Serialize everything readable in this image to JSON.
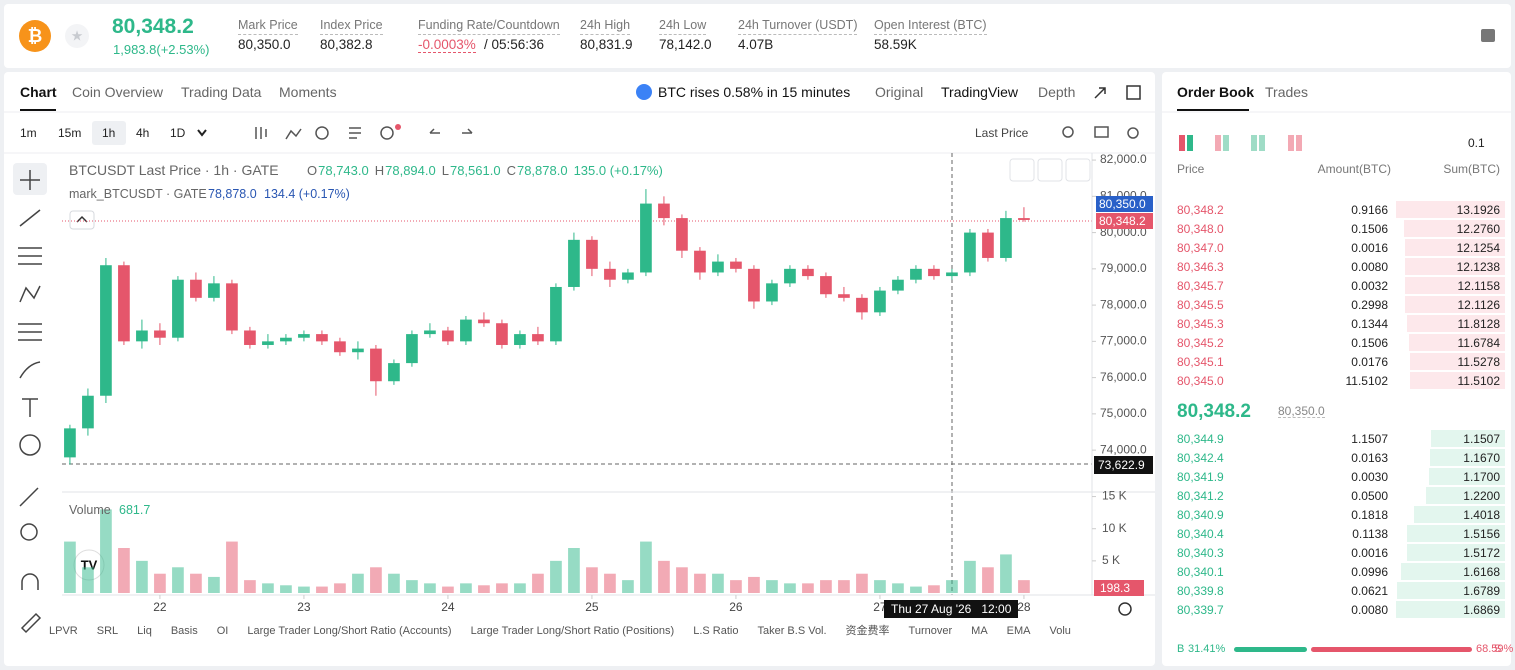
{
  "header": {
    "price": "80,348.2",
    "change": "1,983.8(+2.53%)",
    "stats": [
      {
        "label": "Mark Price",
        "value": "80,350.0"
      },
      {
        "label": "Index Price",
        "value": "80,382.8"
      },
      {
        "label": "Funding Rate/Countdown",
        "value": "-0.0003%",
        "extra": "/ 05:56:36"
      },
      {
        "label": "24h High",
        "value": "80,831.9"
      },
      {
        "label": "24h Low",
        "value": "78,142.0"
      },
      {
        "label": "24h Turnover (USDT)",
        "value": "4.07B"
      },
      {
        "label": "Open Interest (BTC)",
        "value": "58.59K"
      }
    ]
  },
  "chart_panel": {
    "tabs": [
      "Chart",
      "Coin Overview",
      "Trading Data",
      "Moments"
    ],
    "alert": "BTC rises 0.58% in 15 minutes",
    "views": [
      "Original",
      "TradingView",
      "Depth"
    ],
    "intervals": [
      "1m",
      "15m",
      "1h",
      "4h",
      "1D"
    ],
    "price_source": "Last Price",
    "indicators": [
      "LPVR",
      "SRL",
      "Liq",
      "Basis",
      "OI",
      "Large Trader Long/Short Ratio (Accounts)",
      "Large Trader Long/Short Ratio (Positions)",
      "L.S Ratio",
      "Taker B.S Vol.",
      "资金费率",
      "Turnover",
      "MA",
      "EMA",
      "Volu"
    ]
  },
  "chart_data": {
    "type": "candlestick",
    "title": "BTCUSDT Last Price · 1h · GATE",
    "ohlc": [
      [
        "O",
        "78,743.0"
      ],
      [
        "H",
        "78,894.0"
      ],
      [
        "L",
        "78,561.0"
      ],
      [
        "C",
        "78,878.0"
      ]
    ],
    "change": "135.0 (+0.17%)",
    "mark_title": "mark_BTCUSDT · GATE",
    "mark_price": "78,878.0",
    "mark_change": "134.4 (+0.17%)",
    "up_color": "#2eb88a",
    "down_color": "#e5566b",
    "candles": [
      [
        73800,
        74700,
        73600,
        74600
      ],
      [
        74600,
        75700,
        74400,
        75500
      ],
      [
        75500,
        79300,
        75300,
        79100
      ],
      [
        79100,
        79200,
        76900,
        77000
      ],
      [
        77000,
        77600,
        76800,
        77300
      ],
      [
        77300,
        77500,
        76900,
        77100
      ],
      [
        77100,
        78800,
        77000,
        78700
      ],
      [
        78700,
        78900,
        78100,
        78200
      ],
      [
        78200,
        78800,
        78100,
        78600
      ],
      [
        78600,
        78700,
        77200,
        77300
      ],
      [
        77300,
        77400,
        76800,
        76900
      ],
      [
        76900,
        77200,
        76800,
        77000
      ],
      [
        77000,
        77200,
        76900,
        77100
      ],
      [
        77100,
        77300,
        77000,
        77200
      ],
      [
        77200,
        77300,
        76900,
        77000
      ],
      [
        77000,
        77100,
        76600,
        76700
      ],
      [
        76700,
        77000,
        76500,
        76800
      ],
      [
        76800,
        76900,
        75500,
        75900
      ],
      [
        75900,
        76500,
        75800,
        76400
      ],
      [
        76400,
        77300,
        76300,
        77200
      ],
      [
        77200,
        77500,
        77100,
        77300
      ],
      [
        77300,
        77400,
        76900,
        77000
      ],
      [
        77000,
        77700,
        76900,
        77600
      ],
      [
        77600,
        77800,
        77400,
        77500
      ],
      [
        77500,
        77600,
        76800,
        76900
      ],
      [
        76900,
        77300,
        76800,
        77200
      ],
      [
        77200,
        77400,
        76900,
        77000
      ],
      [
        77000,
        78600,
        76900,
        78500
      ],
      [
        78500,
        80000,
        78400,
        79800
      ],
      [
        79800,
        79900,
        78800,
        79000
      ],
      [
        79000,
        79200,
        78500,
        78700
      ],
      [
        78700,
        79000,
        78600,
        78900
      ],
      [
        78900,
        81200,
        78800,
        80800
      ],
      [
        80800,
        81000,
        80200,
        80400
      ],
      [
        80400,
        80500,
        79300,
        79500
      ],
      [
        79500,
        79600,
        78700,
        78900
      ],
      [
        78900,
        79400,
        78800,
        79200
      ],
      [
        79200,
        79300,
        78900,
        79000
      ],
      [
        79000,
        79100,
        77900,
        78100
      ],
      [
        78100,
        78700,
        78000,
        78600
      ],
      [
        78600,
        79100,
        78500,
        79000
      ],
      [
        79000,
        79100,
        78700,
        78800
      ],
      [
        78800,
        78900,
        78200,
        78300
      ],
      [
        78300,
        78500,
        78100,
        78200
      ],
      [
        78200,
        78300,
        77600,
        77800
      ],
      [
        77800,
        78500,
        77700,
        78400
      ],
      [
        78400,
        78800,
        78300,
        78700
      ],
      [
        78700,
        79100,
        78600,
        79000
      ],
      [
        79000,
        79100,
        78700,
        78800
      ],
      [
        78800,
        79000,
        78700,
        78900
      ],
      [
        78900,
        80100,
        78800,
        80000
      ],
      [
        80000,
        80100,
        79200,
        79300
      ],
      [
        79300,
        80600,
        79200,
        80400
      ],
      [
        80400,
        80700,
        80300,
        80348.2
      ]
    ],
    "xlim": [
      -0.44,
      56.67
    ],
    "xticks": [
      {
        "value": 5,
        "label": "22"
      },
      {
        "value": 13,
        "label": "23"
      },
      {
        "value": 21,
        "label": "24"
      },
      {
        "value": 29,
        "label": "25"
      },
      {
        "value": 37,
        "label": "26"
      },
      {
        "value": 45,
        "label": "27"
      },
      {
        "value": 53,
        "label": "28"
      }
    ],
    "ylim": [
      72900,
      82140
    ],
    "yticks": [
      {
        "value": 74000,
        "label": "74,000.0"
      },
      {
        "value": 75000,
        "label": "75,000.0"
      },
      {
        "value": 76000,
        "label": "76,000.0"
      },
      {
        "value": 77000,
        "label": "77,000.0"
      },
      {
        "value": 78000,
        "label": "78,000.0"
      },
      {
        "value": 79000,
        "label": "79,000.0"
      },
      {
        "value": 80000,
        "label": "80,000.0"
      },
      {
        "value": 81000,
        "label": "81,000.0"
      },
      {
        "value": 82000,
        "label": "82,000.0"
      }
    ],
    "price_labels": {
      "mark": "80,350.0",
      "last": "80,348.2",
      "cursor": "73,622.9"
    },
    "cursor_time": "Thu 27 Aug '26   12:00",
    "volume": {
      "label": "Volume",
      "last": "681.7",
      "last_bar": "198.3",
      "values": [
        8000,
        4000,
        13000,
        7000,
        5000,
        3000,
        4000,
        3000,
        2500,
        8000,
        2000,
        1500,
        1200,
        1000,
        1000,
        1500,
        3000,
        4000,
        3000,
        2000,
        1500,
        1000,
        1500,
        1200,
        1500,
        1500,
        3000,
        5000,
        7000,
        4000,
        3000,
        2000,
        8000,
        5000,
        4000,
        3000,
        3000,
        2000,
        2500,
        2000,
        1500,
        1500,
        2000,
        2000,
        3000,
        2000,
        1500,
        1000,
        1200,
        2000,
        5000,
        4000,
        6000,
        2000
      ],
      "ylim": [
        0,
        15400
      ],
      "yticks": [
        {
          "value": 5000,
          "label": "5 K"
        },
        {
          "value": 10000,
          "label": "10 K"
        },
        {
          "value": 15000,
          "label": "15 K"
        }
      ]
    }
  },
  "order_book": {
    "tabs": [
      "Order Book",
      "Trades"
    ],
    "precision": "0.1",
    "columns": [
      "Price",
      "Amount(BTC)",
      "Sum(BTC)"
    ],
    "asks": [
      [
        "80,348.2",
        "0.9166",
        "13.1926"
      ],
      [
        "80,348.0",
        "0.1506",
        "12.2760"
      ],
      [
        "80,347.0",
        "0.0016",
        "12.1254"
      ],
      [
        "80,346.3",
        "0.0080",
        "12.1238"
      ],
      [
        "80,345.7",
        "0.0032",
        "12.1158"
      ],
      [
        "80,345.5",
        "0.2998",
        "12.1126"
      ],
      [
        "80,345.3",
        "0.1344",
        "11.8128"
      ],
      [
        "80,345.2",
        "0.1506",
        "11.6784"
      ],
      [
        "80,345.1",
        "0.0176",
        "11.5278"
      ],
      [
        "80,345.0",
        "11.5102",
        "11.5102"
      ]
    ],
    "mid_price": "80,348.2",
    "mark_price": "80,350.0",
    "bids": [
      [
        "80,344.9",
        "1.1507",
        "1.1507"
      ],
      [
        "80,342.4",
        "0.0163",
        "1.1670"
      ],
      [
        "80,341.9",
        "0.0030",
        "1.1700"
      ],
      [
        "80,341.2",
        "0.0500",
        "1.2200"
      ],
      [
        "80,340.9",
        "0.1818",
        "1.4018"
      ],
      [
        "80,340.4",
        "0.1138",
        "1.5156"
      ],
      [
        "80,340.3",
        "0.0016",
        "1.5172"
      ],
      [
        "80,340.1",
        "0.0996",
        "1.6168"
      ],
      [
        "80,339.8",
        "0.0621",
        "1.6789"
      ],
      [
        "80,339.7",
        "0.0080",
        "1.6869"
      ]
    ],
    "ratio": {
      "buy_label": "B",
      "buy": {
        "value": 31.41,
        "label": "31.41%"
      },
      "sell": {
        "value": 68.59,
        "label": "68.59%"
      },
      "sell_label": "S"
    }
  }
}
